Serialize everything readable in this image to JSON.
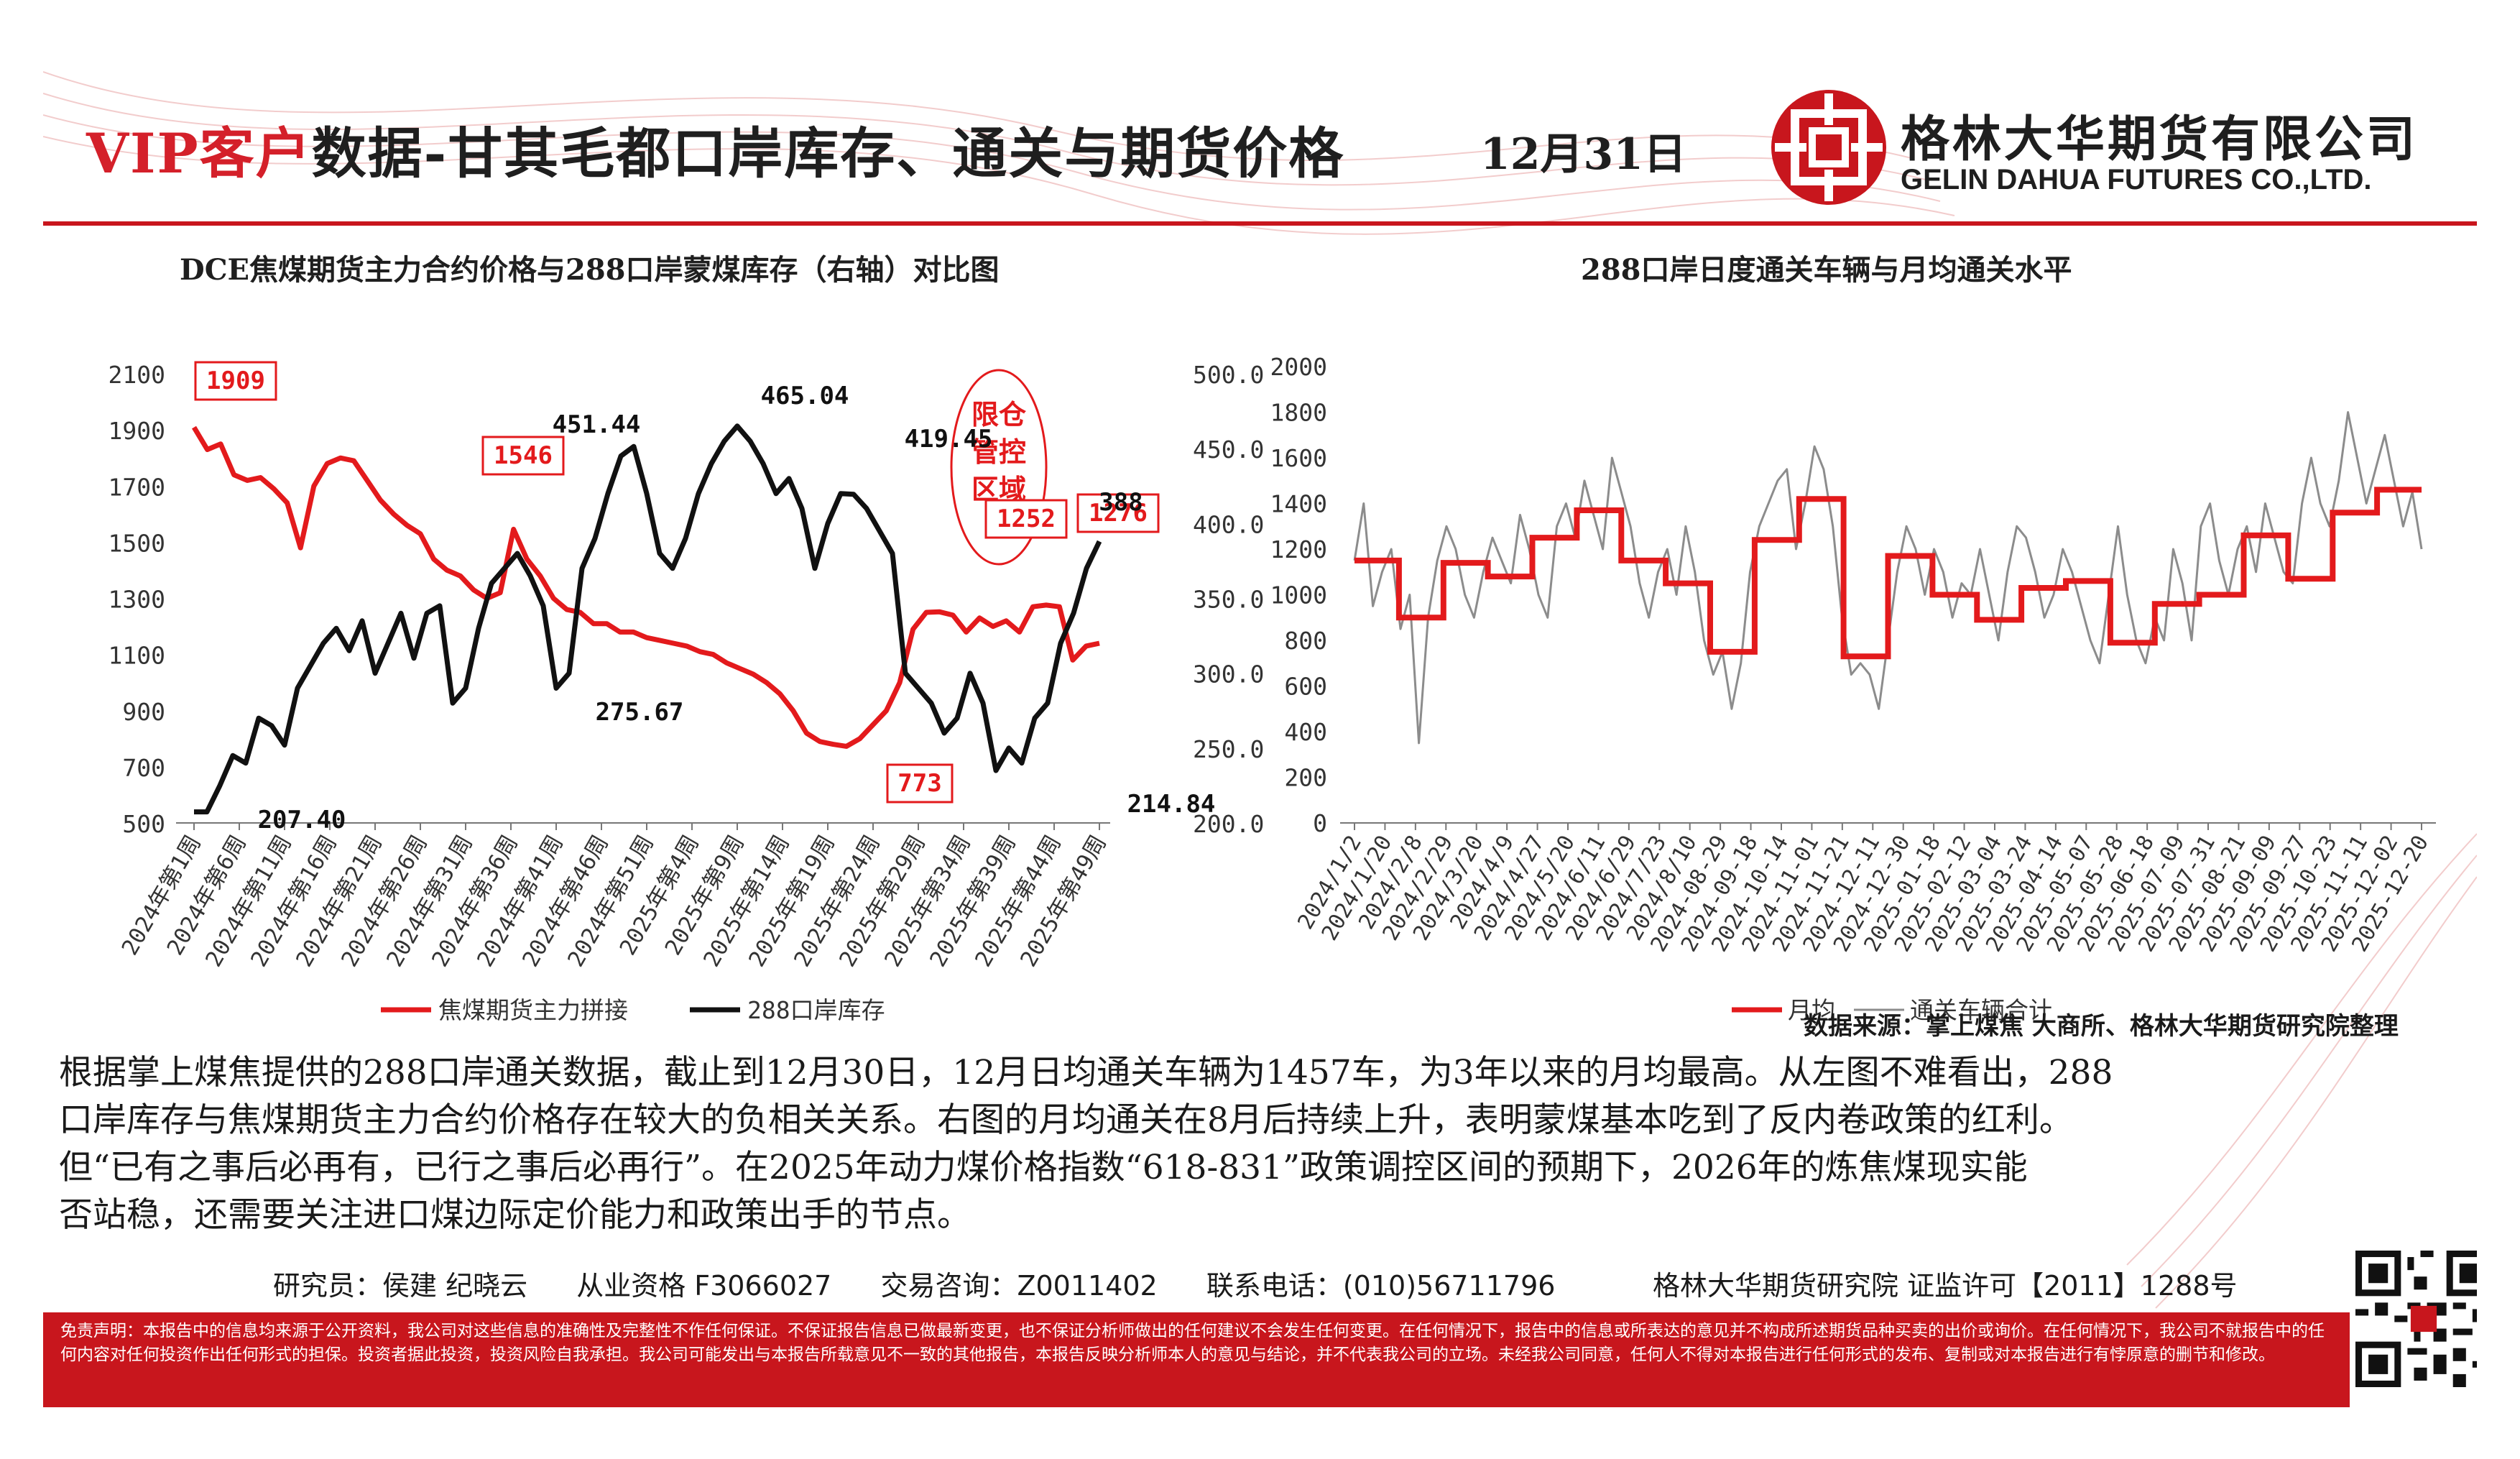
{
  "header": {
    "title_vip": "VIP客户",
    "title_rest": "数据-甘其毛都口岸库存、通关与期货价格",
    "date": "12月31日",
    "company_cn": "格林大华期货有限公司",
    "company_en": "GELIN DAHUA FUTURES CO.,LTD.",
    "brand_color": "#c8161d"
  },
  "left_chart": {
    "title": "DCE焦煤期货主力合约价格与288口岸蒙煤库存（右轴）对比图",
    "zone_label": [
      "限仓",
      "管控",
      "区域"
    ]
  },
  "right_chart": {
    "title": "288口岸日度通关车辆与月均通关水平"
  },
  "source": "数据来源：掌上煤焦 大商所、格林大华期货研究院整理",
  "paragraph": [
    "根据掌上煤焦提供的288口岸通关数据，截止到12月30日，12月日均通关车辆为1457车，为3年以来的月均最高。从左图不难看出，288",
    "口岸库存与焦煤期货主力合约价格存在较大的负相关关系。右图的月均通关在8月后持续上升，表明蒙煤基本吃到了反内卷政策的红利。",
    "但“已有之事后必再有，已行之事后必再行”。在2025年动力煤价格指数“618-831”政策调控区间的预期下，2026年的炼焦煤现实能",
    "否站稳，还需要关注进口煤边际定价能力和政策出手的节点。"
  ],
  "footer": {
    "researcher": "研究员：侯建  纪晓云",
    "qualification": "从业资格 F3066027",
    "consult": "交易咨询：Z0011402",
    "phone": "联系电话：(010)56711796",
    "org": "格林大华期货研究院  证监许可【2011】1288号",
    "disclaimer": "免责声明：本报告中的信息均来源于公开资料，我公司对这些信息的准确性及完整性不作任何保证。不保证报告信息已做最新变更，也不保证分析师做出的任何建议不会发生任何变更。在任何情况下，报告中的信息或所表达的意见并不构成所述期货品种买卖的出价或询价。在任何情况下，我公司不就报告中的任何内容对任何投资作出任何形式的担保。投资者据此投资，投资风险自我承担。我公司可能发出与本报告所载意见不一致的其他报告，本报告反映分析师本人的意见与结论，并不代表我公司的立场。未经我公司同意，任何人不得对本报告进行任何形式的发布、复制或对本报告进行有悖原意的删节和修改。"
  },
  "chart_data": [
    {
      "type": "line",
      "title": "DCE焦煤期货主力合约价格与288口岸蒙煤库存（右轴）对比图",
      "x_labels": [
        "2024年第1周",
        "2024年第6周",
        "2024年第11周",
        "2024年第16周",
        "2024年第21周",
        "2024年第26周",
        "2024年第31周",
        "2024年第36周",
        "2024年第41周",
        "2024年第46周",
        "2024年第51周",
        "2025年第4周",
        "2025年第9周",
        "2025年第14周",
        "2025年第19周",
        "2025年第24周",
        "2025年第29周",
        "2025年第34周",
        "2025年第39周",
        "2025年第44周",
        "2025年第49周"
      ],
      "y_ticks": [
        "2100",
        "1900",
        "1700",
        "1500",
        "1300",
        "1100",
        "900",
        "700",
        "500"
      ],
      "y2_ticks": [
        "500.00",
        "450.00",
        "400.00",
        "350.00",
        "300.00",
        "250.00",
        "200.00"
      ],
      "ylim": [
        500,
        2100
      ],
      "y2lim": [
        200,
        500
      ],
      "legend_position": "bottom",
      "series": [
        {
          "name": "焦煤期货主力拼接",
          "axis": "left",
          "color": "#e31a1c",
          "values": [
            1909,
            1830,
            1850,
            1740,
            1720,
            1730,
            1690,
            1640,
            1480,
            1700,
            1780,
            1800,
            1790,
            1720,
            1650,
            1600,
            1560,
            1530,
            1440,
            1400,
            1380,
            1330,
            1300,
            1320,
            1546,
            1440,
            1380,
            1300,
            1260,
            1250,
            1210,
            1210,
            1180,
            1180,
            1160,
            1150,
            1140,
            1130,
            1110,
            1100,
            1070,
            1050,
            1030,
            1000,
            960,
            900,
            820,
            790,
            780,
            773,
            800,
            850,
            900,
            1000,
            1190,
            1250,
            1252,
            1240,
            1180,
            1230,
            1200,
            1220,
            1180,
            1270,
            1276,
            1270,
            1080,
            1130,
            1140
          ]
        },
        {
          "name": "288口岸库存",
          "axis": "right",
          "color": "#111111",
          "values": [
            207.4,
            207.4,
            225,
            245,
            240,
            270,
            265,
            252,
            290,
            305,
            320,
            330,
            315,
            335,
            300,
            320,
            340,
            310,
            340,
            345,
            280,
            290,
            330,
            360,
            370,
            380,
            365,
            345,
            290,
            300,
            370,
            390,
            420,
            445,
            451.44,
            420,
            380,
            370,
            390,
            420,
            440,
            455,
            465.04,
            455,
            440,
            420,
            430,
            410,
            370,
            400,
            420,
            419.45,
            410,
            395,
            380,
            300,
            290,
            280,
            260,
            270,
            300,
            280,
            235,
            250,
            240,
            270,
            280,
            320,
            340,
            370,
            388
          ]
        }
      ],
      "annotations": {
        "red": [
          "1909",
          "1546",
          "773",
          "1252",
          "1276"
        ],
        "black": [
          "451.44",
          "465.04",
          "419.45",
          "275.67",
          "207.40",
          "388",
          "214.84"
        ]
      }
    },
    {
      "type": "line",
      "title": "288口岸日度通关车辆与月均通关水平",
      "x_labels": [
        "2024/1/2",
        "2024/1/20",
        "2024/2/8",
        "2024/2/29",
        "2024/3/20",
        "2024/4/9",
        "2024/4/27",
        "2024/5/20",
        "2024/6/11",
        "2024/6/29",
        "2024/7/23",
        "2024/8/10",
        "2024-08-29",
        "2024-09-18",
        "2024-10-14",
        "2024-11-01",
        "2024-11-21",
        "2024-12-11",
        "2024-12-30",
        "2025-01-18",
        "2025-02-12",
        "2025-03-04",
        "2025-03-24",
        "2025-04-14",
        "2025-05-07",
        "2025-05-28",
        "2025-06-18",
        "2025-07-09",
        "2025-07-31",
        "2025-08-21",
        "2025-09-09",
        "2025-09-27",
        "2025-10-23",
        "2025-11-11",
        "2025-12-02",
        "2025-12-20"
      ],
      "y_ticks": [
        "2000",
        "1800",
        "1600",
        "1400",
        "1200",
        "1000",
        "800",
        "600",
        "400",
        "200",
        "0"
      ],
      "ylim": [
        0,
        2000
      ],
      "legend_position": "bottom",
      "series": [
        {
          "name": "月均",
          "color": "#e31a1c",
          "values": [
            1150,
            900,
            1140,
            1080,
            1250,
            1370,
            1150,
            1050,
            750,
            1240,
            1420,
            730,
            1170,
            1000,
            890,
            1030,
            1060,
            790,
            960,
            1000,
            1260,
            1070,
            1360,
            1460
          ]
        },
        {
          "name": "通关车辆合计",
          "color": "#8c8c8c",
          "values": [
            1150,
            1400,
            950,
            1100,
            1200,
            850,
            1000,
            350,
            900,
            1150,
            1300,
            1200,
            1000,
            900,
            1100,
            1250,
            1150,
            1050,
            1350,
            1200,
            1000,
            900,
            1300,
            1400,
            1250,
            1500,
            1350,
            1200,
            1600,
            1450,
            1300,
            1050,
            900,
            1100,
            1200,
            1000,
            1300,
            1100,
            800,
            650,
            750,
            500,
            700,
            1100,
            1300,
            1400,
            1500,
            1550,
            1200,
            1400,
            1650,
            1550,
            1300,
            900,
            650,
            700,
            650,
            500,
            800,
            1100,
            1300,
            1200,
            1000,
            1200,
            1100,
            900,
            1050,
            1000,
            1200,
            1000,
            800,
            1100,
            1300,
            1250,
            1100,
            900,
            1000,
            1200,
            1100,
            950,
            800,
            700,
            1000,
            1300,
            1000,
            800,
            700,
            900,
            800,
            1200,
            1050,
            800,
            1300,
            1400,
            1150,
            1000,
            1200,
            1300,
            1100,
            1400,
            1250,
            1100,
            1050,
            1400,
            1600,
            1400,
            1300,
            1500,
            1800,
            1600,
            1400,
            1550,
            1700,
            1500,
            1300,
            1450,
            1200
          ]
        }
      ]
    }
  ]
}
